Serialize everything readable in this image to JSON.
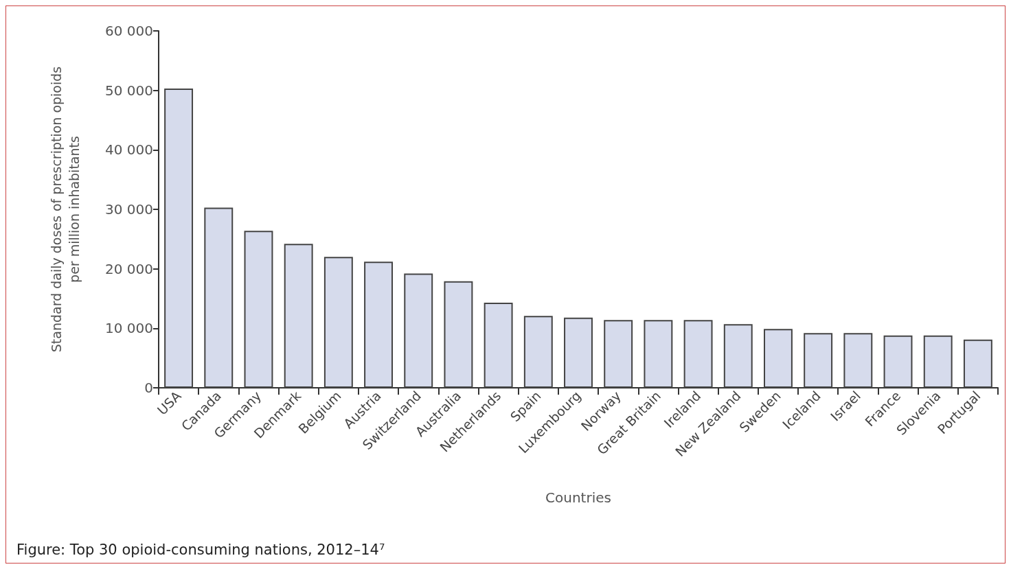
{
  "chart_data": {
    "type": "bar",
    "title": "Figure: Top 30 opioid-consuming nations, 2012–14⁷",
    "xlabel": "Countries",
    "ylabel": "Standard daily doses of prescription opioids\nper million inhabitants",
    "categories": [
      "USA",
      "Canada",
      "Germany",
      "Denmark",
      "Belgium",
      "Austria",
      "Switzerland",
      "Australia",
      "Netherlands",
      "Spain",
      "Luxembourg",
      "Norway",
      "Great Britain",
      "Ireland",
      "New Zealand",
      "Sweden",
      "Iceland",
      "Israel",
      "France",
      "Slovenia",
      "Portugal"
    ],
    "values": [
      50300,
      30300,
      26400,
      24200,
      22000,
      21200,
      19200,
      17900,
      14300,
      12100,
      11800,
      11400,
      11400,
      11400,
      10700,
      9900,
      9200,
      9200,
      8800,
      8800,
      8100
    ],
    "color": "#d6dbec",
    "ylim": [
      0,
      60000
    ],
    "yticks": [
      {
        "value": 0,
        "label": "0"
      },
      {
        "value": 10000,
        "label": "10 000"
      },
      {
        "value": 20000,
        "label": "20 000"
      },
      {
        "value": 30000,
        "label": "30 000"
      },
      {
        "value": 40000,
        "label": "40 000"
      },
      {
        "value": 50000,
        "label": "50 000"
      },
      {
        "value": 60000,
        "label": "60 000"
      }
    ],
    "grid": false
  }
}
